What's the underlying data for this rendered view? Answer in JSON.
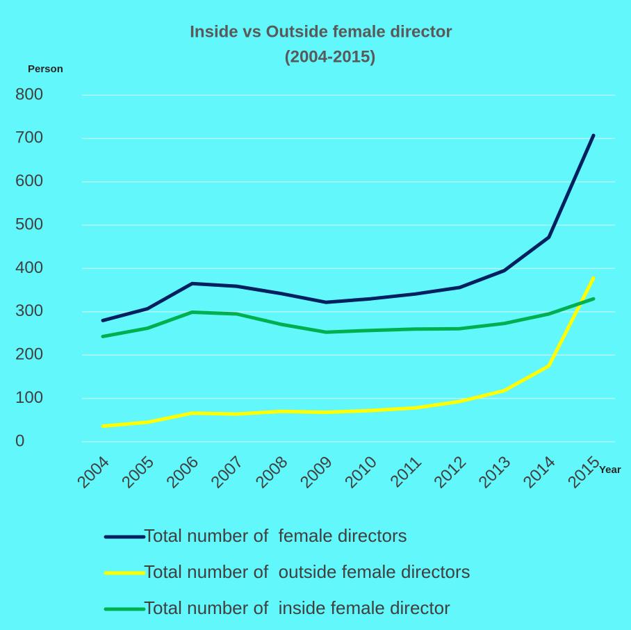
{
  "chart_data": {
    "type": "line",
    "title": "Inside vs Outside female director",
    "subtitle": "(2004-2015)",
    "y_label": "Person",
    "x_label": "Year",
    "categories": [
      "2004",
      "2005",
      "2006",
      "2007",
      "2008",
      "2009",
      "2010",
      "2011",
      "2012",
      "2013",
      "2014",
      "2015"
    ],
    "series": [
      {
        "name": "Total number of  female directors",
        "color": "#002060",
        "values": [
          280,
          307,
          365,
          359,
          342,
          322,
          330,
          341,
          356,
          395,
          472,
          707
        ]
      },
      {
        "name": "Total number of  outside female directors",
        "color": "#ffff00",
        "values": [
          36,
          45,
          66,
          64,
          70,
          68,
          72,
          78,
          93,
          118,
          175,
          378
        ]
      },
      {
        "name": "Total number of  inside female director",
        "color": "#00b050",
        "values": [
          243,
          262,
          299,
          295,
          271,
          253,
          257,
          260,
          261,
          273,
          295,
          330
        ]
      }
    ],
    "ylim": [
      0,
      800
    ],
    "yticks": [
      0,
      100,
      200,
      300,
      400,
      500,
      600,
      700,
      800
    ],
    "grid": true,
    "legend": "bottom",
    "background": "#62f7fb"
  }
}
